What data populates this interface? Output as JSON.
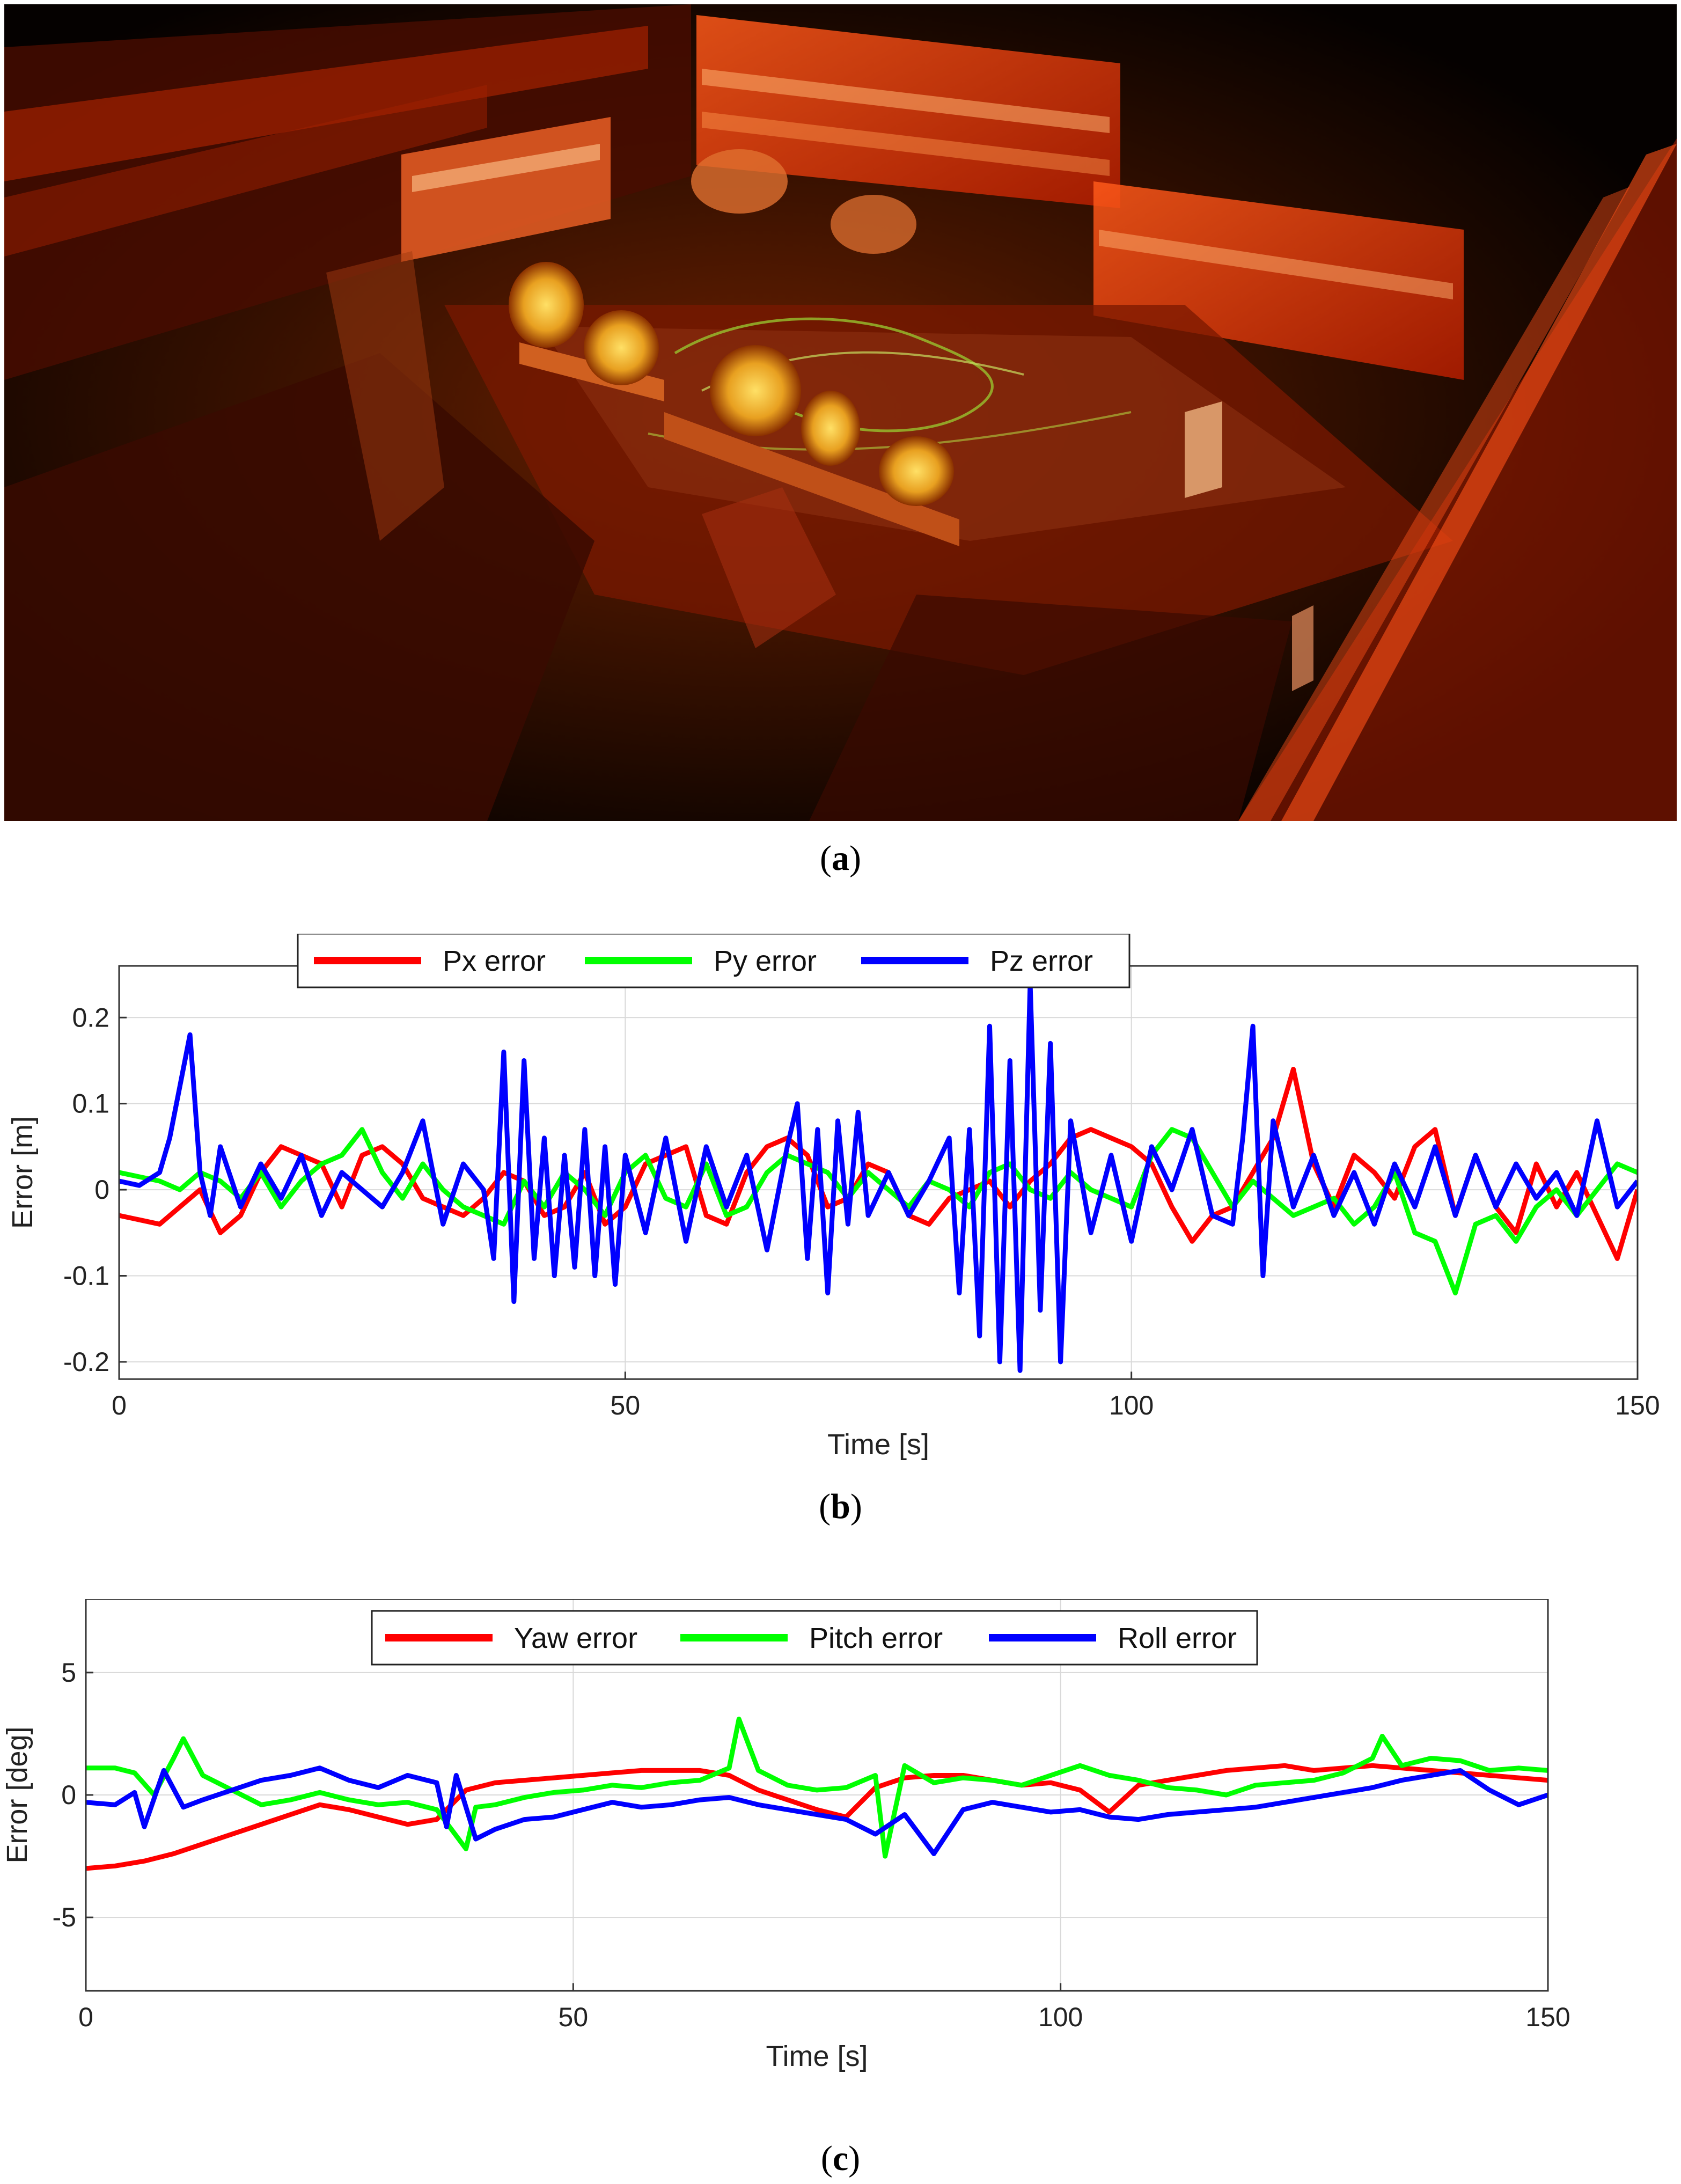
{
  "panel_captions": {
    "a": "a",
    "b": "b",
    "c": "c"
  },
  "colors": {
    "red": "#ff0000",
    "green": "#00ff00",
    "blue": "#0000ff",
    "grid": "#d9d9d9",
    "pointcloud_dark": "#050100",
    "pointcloud_orange": "#ff4a10"
  },
  "chart_data": [
    {
      "type": "line",
      "panel": "b",
      "xlabel": "Time [s]",
      "ylabel": "Error [m]",
      "xlim": [
        0,
        150
      ],
      "ylim": [
        -0.22,
        0.26
      ],
      "xticks": [
        0,
        50,
        100,
        150
      ],
      "yticks": [
        -0.2,
        -0.1,
        0,
        0.1,
        0.2
      ],
      "ytick_labels": [
        "-0.2",
        "-0.1",
        "0",
        "0.1",
        "0.2"
      ],
      "grid": true,
      "legend": "top",
      "series": [
        {
          "name": "Px error",
          "color": "#ff0000",
          "x": [
            0,
            2,
            4,
            6,
            8,
            10,
            12,
            14,
            16,
            18,
            20,
            22,
            24,
            26,
            28,
            30,
            32,
            34,
            36,
            38,
            40,
            42,
            44,
            46,
            48,
            50,
            52,
            54,
            56,
            58,
            60,
            62,
            64,
            66,
            68,
            70,
            72,
            74,
            76,
            78,
            80,
            82,
            84,
            86,
            88,
            90,
            92,
            94,
            96,
            98,
            100,
            102,
            104,
            106,
            108,
            110,
            112,
            114,
            116,
            118,
            120,
            122,
            124,
            126,
            128,
            130,
            132,
            134,
            136,
            138,
            140,
            142,
            144,
            146,
            148,
            150
          ],
          "y": [
            -0.03,
            -0.035,
            -0.04,
            -0.02,
            0.0,
            -0.05,
            -0.03,
            0.02,
            0.05,
            0.04,
            0.03,
            -0.02,
            0.04,
            0.05,
            0.03,
            -0.01,
            -0.02,
            -0.03,
            -0.01,
            0.02,
            0.01,
            -0.03,
            -0.02,
            0.02,
            -0.04,
            -0.02,
            0.03,
            0.04,
            0.05,
            -0.03,
            -0.04,
            0.02,
            0.05,
            0.06,
            0.04,
            -0.02,
            -0.01,
            0.03,
            0.02,
            -0.03,
            -0.04,
            -0.01,
            0.0,
            0.01,
            -0.02,
            0.01,
            0.03,
            0.06,
            0.07,
            0.06,
            0.05,
            0.03,
            -0.02,
            -0.06,
            -0.03,
            -0.02,
            0.02,
            0.06,
            0.14,
            0.03,
            -0.02,
            0.04,
            0.02,
            -0.01,
            0.05,
            0.07,
            -0.03,
            0.04,
            -0.02,
            -0.05,
            0.03,
            -0.02,
            0.02,
            -0.03,
            -0.08,
            0.0
          ]
        },
        {
          "name": "Py error",
          "color": "#00ff00",
          "x": [
            0,
            2,
            4,
            6,
            8,
            10,
            12,
            14,
            16,
            18,
            20,
            22,
            24,
            26,
            28,
            30,
            32,
            34,
            36,
            38,
            40,
            42,
            44,
            46,
            48,
            50,
            52,
            54,
            56,
            58,
            60,
            62,
            64,
            66,
            68,
            70,
            72,
            74,
            76,
            78,
            80,
            82,
            84,
            86,
            88,
            90,
            92,
            94,
            96,
            98,
            100,
            102,
            104,
            106,
            108,
            110,
            112,
            114,
            116,
            118,
            120,
            122,
            124,
            126,
            128,
            130,
            132,
            134,
            136,
            138,
            140,
            142,
            144,
            146,
            148,
            150
          ],
          "y": [
            0.02,
            0.015,
            0.01,
            0.0,
            0.02,
            0.01,
            -0.01,
            0.02,
            -0.02,
            0.01,
            0.03,
            0.04,
            0.07,
            0.02,
            -0.01,
            0.03,
            0.0,
            -0.02,
            -0.03,
            -0.04,
            0.01,
            -0.02,
            0.02,
            0.0,
            -0.03,
            0.02,
            0.04,
            -0.01,
            -0.02,
            0.03,
            -0.03,
            -0.02,
            0.02,
            0.04,
            0.03,
            0.02,
            -0.01,
            0.02,
            0.0,
            -0.02,
            0.01,
            0.0,
            -0.02,
            0.02,
            0.03,
            0.0,
            -0.01,
            0.02,
            0.0,
            -0.01,
            -0.02,
            0.04,
            0.07,
            0.06,
            0.02,
            -0.02,
            0.01,
            -0.01,
            -0.03,
            -0.02,
            -0.01,
            -0.04,
            -0.02,
            0.02,
            -0.05,
            -0.06,
            -0.12,
            -0.04,
            -0.03,
            -0.06,
            -0.02,
            0.0,
            -0.03,
            0.0,
            0.03,
            0.02
          ]
        },
        {
          "name": "Pz error",
          "color": "#0000ff",
          "x": [
            0,
            2,
            4,
            5,
            6,
            7,
            8,
            9,
            10,
            12,
            14,
            16,
            18,
            20,
            22,
            24,
            26,
            28,
            30,
            32,
            34,
            36,
            37,
            38,
            39,
            40,
            41,
            42,
            43,
            44,
            45,
            46,
            47,
            48,
            49,
            50,
            52,
            54,
            56,
            58,
            60,
            62,
            64,
            66,
            67,
            68,
            69,
            70,
            71,
            72,
            73,
            74,
            76,
            78,
            80,
            82,
            83,
            84,
            85,
            86,
            87,
            88,
            89,
            90,
            91,
            92,
            93,
            94,
            96,
            98,
            100,
            102,
            104,
            106,
            108,
            110,
            111,
            112,
            113,
            114,
            116,
            118,
            120,
            122,
            124,
            126,
            128,
            130,
            132,
            134,
            136,
            138,
            140,
            142,
            144,
            146,
            148,
            150
          ],
          "y": [
            0.01,
            0.005,
            0.02,
            0.06,
            0.12,
            0.18,
            0.02,
            -0.03,
            0.05,
            -0.02,
            0.03,
            -0.01,
            0.04,
            -0.03,
            0.02,
            0.0,
            -0.02,
            0.02,
            0.08,
            -0.04,
            0.03,
            0.0,
            -0.08,
            0.16,
            -0.13,
            0.15,
            -0.08,
            0.06,
            -0.1,
            0.04,
            -0.09,
            0.07,
            -0.1,
            0.05,
            -0.11,
            0.04,
            -0.05,
            0.06,
            -0.06,
            0.05,
            -0.02,
            0.04,
            -0.07,
            0.05,
            0.1,
            -0.08,
            0.07,
            -0.12,
            0.08,
            -0.04,
            0.09,
            -0.03,
            0.02,
            -0.03,
            0.01,
            0.06,
            -0.12,
            0.07,
            -0.17,
            0.19,
            -0.2,
            0.15,
            -0.21,
            0.24,
            -0.14,
            0.17,
            -0.2,
            0.08,
            -0.05,
            0.04,
            -0.06,
            0.05,
            0.0,
            0.07,
            -0.03,
            -0.04,
            0.06,
            0.19,
            -0.1,
            0.08,
            -0.02,
            0.04,
            -0.03,
            0.02,
            -0.04,
            0.03,
            -0.02,
            0.05,
            -0.03,
            0.04,
            -0.02,
            0.03,
            -0.01,
            0.02,
            -0.03,
            0.08,
            -0.02,
            0.01
          ]
        }
      ]
    },
    {
      "type": "line",
      "panel": "c",
      "xlabel": "Time [s]",
      "ylabel": "Error [deg]",
      "xlim": [
        0,
        150
      ],
      "ylim": [
        -8,
        8
      ],
      "xticks": [
        0,
        50,
        100,
        150
      ],
      "yticks": [
        -5,
        0,
        5
      ],
      "ytick_labels": [
        "-5",
        "0",
        "5"
      ],
      "grid": true,
      "legend": "top",
      "series": [
        {
          "name": "Yaw error",
          "color": "#ff0000",
          "x": [
            0,
            3,
            6,
            9,
            12,
            15,
            18,
            21,
            24,
            27,
            30,
            33,
            36,
            39,
            42,
            45,
            48,
            51,
            54,
            57,
            60,
            63,
            66,
            69,
            72,
            75,
            78,
            81,
            84,
            87,
            90,
            93,
            96,
            99,
            102,
            105,
            108,
            111,
            114,
            117,
            120,
            123,
            126,
            129,
            132,
            135,
            138,
            141,
            144,
            147,
            150
          ],
          "y": [
            -3.0,
            -2.9,
            -2.7,
            -2.4,
            -2.0,
            -1.6,
            -1.2,
            -0.8,
            -0.4,
            -0.6,
            -0.9,
            -1.2,
            -1.0,
            0.2,
            0.5,
            0.6,
            0.7,
            0.8,
            0.9,
            1.0,
            1.0,
            1.0,
            0.8,
            0.2,
            -0.2,
            -0.6,
            -0.9,
            0.3,
            0.7,
            0.8,
            0.8,
            0.6,
            0.4,
            0.5,
            0.2,
            -0.7,
            0.4,
            0.6,
            0.8,
            1.0,
            1.1,
            1.2,
            1.0,
            1.1,
            1.2,
            1.1,
            1.0,
            0.9,
            0.8,
            0.7,
            0.6
          ]
        },
        {
          "name": "Pitch error",
          "color": "#00ff00",
          "x": [
            0,
            3,
            5,
            7,
            9,
            10,
            12,
            15,
            18,
            21,
            24,
            27,
            30,
            33,
            36,
            39,
            40,
            42,
            45,
            48,
            51,
            54,
            57,
            60,
            63,
            66,
            67,
            69,
            72,
            75,
            78,
            81,
            82,
            84,
            87,
            90,
            93,
            96,
            99,
            102,
            105,
            108,
            111,
            114,
            117,
            120,
            123,
            126,
            129,
            132,
            133,
            135,
            138,
            141,
            144,
            147,
            150
          ],
          "y": [
            1.1,
            1.1,
            0.9,
            0.0,
            1.5,
            2.3,
            0.8,
            0.2,
            -0.4,
            -0.2,
            0.1,
            -0.2,
            -0.4,
            -0.3,
            -0.6,
            -2.2,
            -0.5,
            -0.4,
            -0.1,
            0.1,
            0.2,
            0.4,
            0.3,
            0.5,
            0.6,
            1.1,
            3.1,
            1.0,
            0.4,
            0.2,
            0.3,
            0.8,
            -2.5,
            1.2,
            0.5,
            0.7,
            0.6,
            0.4,
            0.8,
            1.2,
            0.8,
            0.6,
            0.3,
            0.2,
            0.0,
            0.4,
            0.5,
            0.6,
            0.9,
            1.5,
            2.4,
            1.2,
            1.5,
            1.4,
            1.0,
            1.1,
            1.0
          ]
        },
        {
          "name": "Roll error",
          "color": "#0000ff",
          "x": [
            0,
            3,
            5,
            6,
            8,
            10,
            12,
            15,
            18,
            21,
            24,
            27,
            30,
            33,
            36,
            37,
            38,
            40,
            42,
            45,
            48,
            51,
            54,
            57,
            60,
            63,
            66,
            69,
            72,
            75,
            78,
            81,
            84,
            87,
            90,
            93,
            96,
            99,
            102,
            105,
            108,
            111,
            114,
            117,
            120,
            123,
            126,
            129,
            132,
            135,
            138,
            141,
            144,
            147,
            150
          ],
          "y": [
            -0.3,
            -0.4,
            0.1,
            -1.3,
            1.0,
            -0.5,
            -0.2,
            0.2,
            0.6,
            0.8,
            1.1,
            0.6,
            0.3,
            0.8,
            0.5,
            -1.3,
            0.8,
            -1.8,
            -1.4,
            -1.0,
            -0.9,
            -0.6,
            -0.3,
            -0.5,
            -0.4,
            -0.2,
            -0.1,
            -0.4,
            -0.6,
            -0.8,
            -1.0,
            -1.6,
            -0.8,
            -2.4,
            -0.6,
            -0.3,
            -0.5,
            -0.7,
            -0.6,
            -0.9,
            -1.0,
            -0.8,
            -0.7,
            -0.6,
            -0.5,
            -0.3,
            -0.1,
            0.1,
            0.3,
            0.6,
            0.8,
            1.0,
            0.2,
            -0.4,
            0.0
          ]
        }
      ]
    }
  ]
}
